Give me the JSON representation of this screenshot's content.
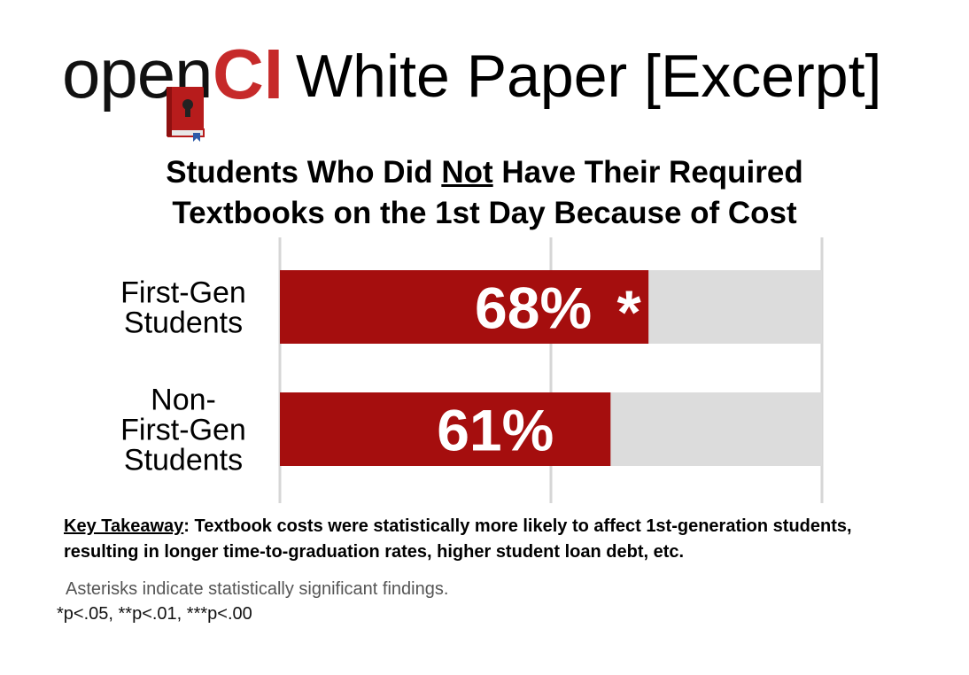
{
  "header": {
    "logo_text_open": "open",
    "logo_text_ci": "CI",
    "title": "White Paper [Excerpt]"
  },
  "colors": {
    "bar_fill": "#a50e0e",
    "bar_background": "#dcdcdc",
    "grid": "#d6d6d6",
    "logo_ci": "#c62a2a"
  },
  "chart_data": {
    "type": "bar",
    "orientation": "horizontal",
    "title_parts": [
      "Students Who Did ",
      "Not",
      " Have Their Required",
      "Textbooks on the 1st Day Because of Cost"
    ],
    "categories": [
      [
        "First-Gen",
        "Students"
      ],
      [
        "Non-",
        "First-Gen",
        "Students"
      ]
    ],
    "values": [
      68,
      61
    ],
    "value_labels": [
      "68%",
      "61%"
    ],
    "significance": [
      "*",
      ""
    ],
    "xlim": [
      0,
      100
    ],
    "grid": true
  },
  "takeaway": {
    "label": "Key Takeaway",
    "text": ": Textbook costs were statistically more likely to affect 1st-generation students, resulting in longer time-to-graduation rates, higher student loan debt, etc."
  },
  "footnote": "Asterisks indicate statistically significant findings.",
  "pvalues": "*p<.05, **p<.01, ***p<.00"
}
